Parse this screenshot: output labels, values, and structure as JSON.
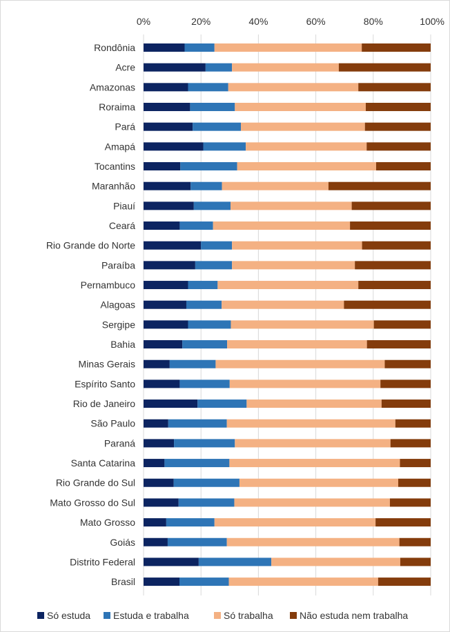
{
  "chart_data": {
    "type": "bar",
    "orientation": "horizontal",
    "stacked": "percent",
    "categories": [
      "Rondônia",
      "Acre",
      "Amazonas",
      "Roraima",
      "Pará",
      "Amapá",
      "Tocantins",
      "Maranhão",
      "Piauí",
      "Ceará",
      "Rio Grande do Norte",
      "Paraíba",
      "Pernambuco",
      "Alagoas",
      "Sergipe",
      "Bahia",
      "Minas Gerais",
      "Espírito Santo",
      "Rio de Janeiro",
      "São Paulo",
      "Paraná",
      "Santa Catarina",
      "Rio Grande do Sul",
      "Mato Grosso do Sul",
      "Mato Grosso",
      "Goiás",
      "Distrito Federal",
      "Brasil"
    ],
    "series": [
      {
        "name": "Só estuda",
        "color": "#0c2461",
        "values": [
          14.3,
          21.6,
          15.5,
          16.2,
          17.1,
          20.8,
          12.8,
          16.4,
          17.5,
          12.6,
          20.0,
          18.0,
          15.5,
          14.9,
          15.5,
          13.5,
          9.1,
          12.6,
          18.8,
          8.6,
          10.6,
          7.3,
          10.5,
          12.2,
          7.9,
          8.4,
          19.2,
          12.5
        ]
      },
      {
        "name": "Estuda e trabalha",
        "color": "#2e75b6",
        "values": [
          10.4,
          9.2,
          14.0,
          15.6,
          16.8,
          14.8,
          19.8,
          10.9,
          12.8,
          11.6,
          10.8,
          12.8,
          10.3,
          12.3,
          14.9,
          15.6,
          16.0,
          17.4,
          17.1,
          20.4,
          21.2,
          22.6,
          22.9,
          19.4,
          16.8,
          20.6,
          25.3,
          17.2
        ]
      },
      {
        "name": "Só trabalha",
        "color": "#f4b183",
        "values": [
          51.3,
          37.2,
          45.3,
          45.6,
          43.2,
          42.1,
          48.4,
          37.1,
          42.2,
          47.7,
          45.3,
          42.8,
          49.0,
          42.6,
          49.8,
          48.7,
          58.9,
          52.5,
          47.0,
          58.7,
          54.2,
          59.4,
          55.3,
          54.2,
          56.1,
          60.1,
          44.9,
          52.0
        ]
      },
      {
        "name": "Não estuda nem trabalha",
        "color": "#843c0c",
        "values": [
          24.0,
          32.0,
          25.2,
          22.6,
          22.9,
          22.3,
          19.0,
          35.6,
          27.5,
          28.1,
          23.9,
          26.4,
          25.2,
          30.2,
          19.8,
          22.2,
          16.0,
          17.5,
          17.1,
          12.3,
          14.0,
          10.7,
          11.3,
          14.2,
          19.2,
          10.9,
          10.6,
          18.3
        ]
      }
    ],
    "x_ticks": [
      "0%",
      "20%",
      "40%",
      "60%",
      "80%",
      "100%"
    ],
    "xlim": [
      0,
      100
    ],
    "x_axis_position": "top",
    "legend_position": "bottom",
    "grid": true
  }
}
